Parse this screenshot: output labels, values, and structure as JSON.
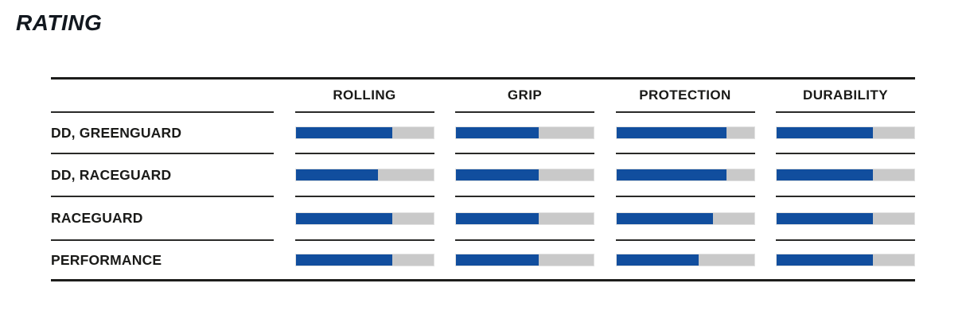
{
  "page": {
    "heading": "RATING"
  },
  "colors": {
    "bar_fill": "#114e9e",
    "bar_track": "#c9c9c9",
    "rule": "#1d1d1b",
    "text": "#1a1a18"
  },
  "chart_data": {
    "type": "bar",
    "orientation": "horizontal",
    "title": "RATING",
    "categories": [
      "ROLLING",
      "GRIP",
      "PROTECTION",
      "DURABILITY"
    ],
    "series": [
      {
        "name": "DD, GREENGUARD",
        "values": [
          70,
          60,
          80,
          70
        ]
      },
      {
        "name": "DD, RACEGUARD",
        "values": [
          60,
          60,
          80,
          70
        ]
      },
      {
        "name": "RACEGUARD",
        "values": [
          70,
          60,
          70,
          70
        ]
      },
      {
        "name": "PERFORMANCE",
        "values": [
          70,
          60,
          60,
          70
        ]
      }
    ],
    "value_unit": "percent of full bar",
    "value_range": [
      0,
      100
    ],
    "grid": false,
    "legend_position": "row labels on left"
  }
}
